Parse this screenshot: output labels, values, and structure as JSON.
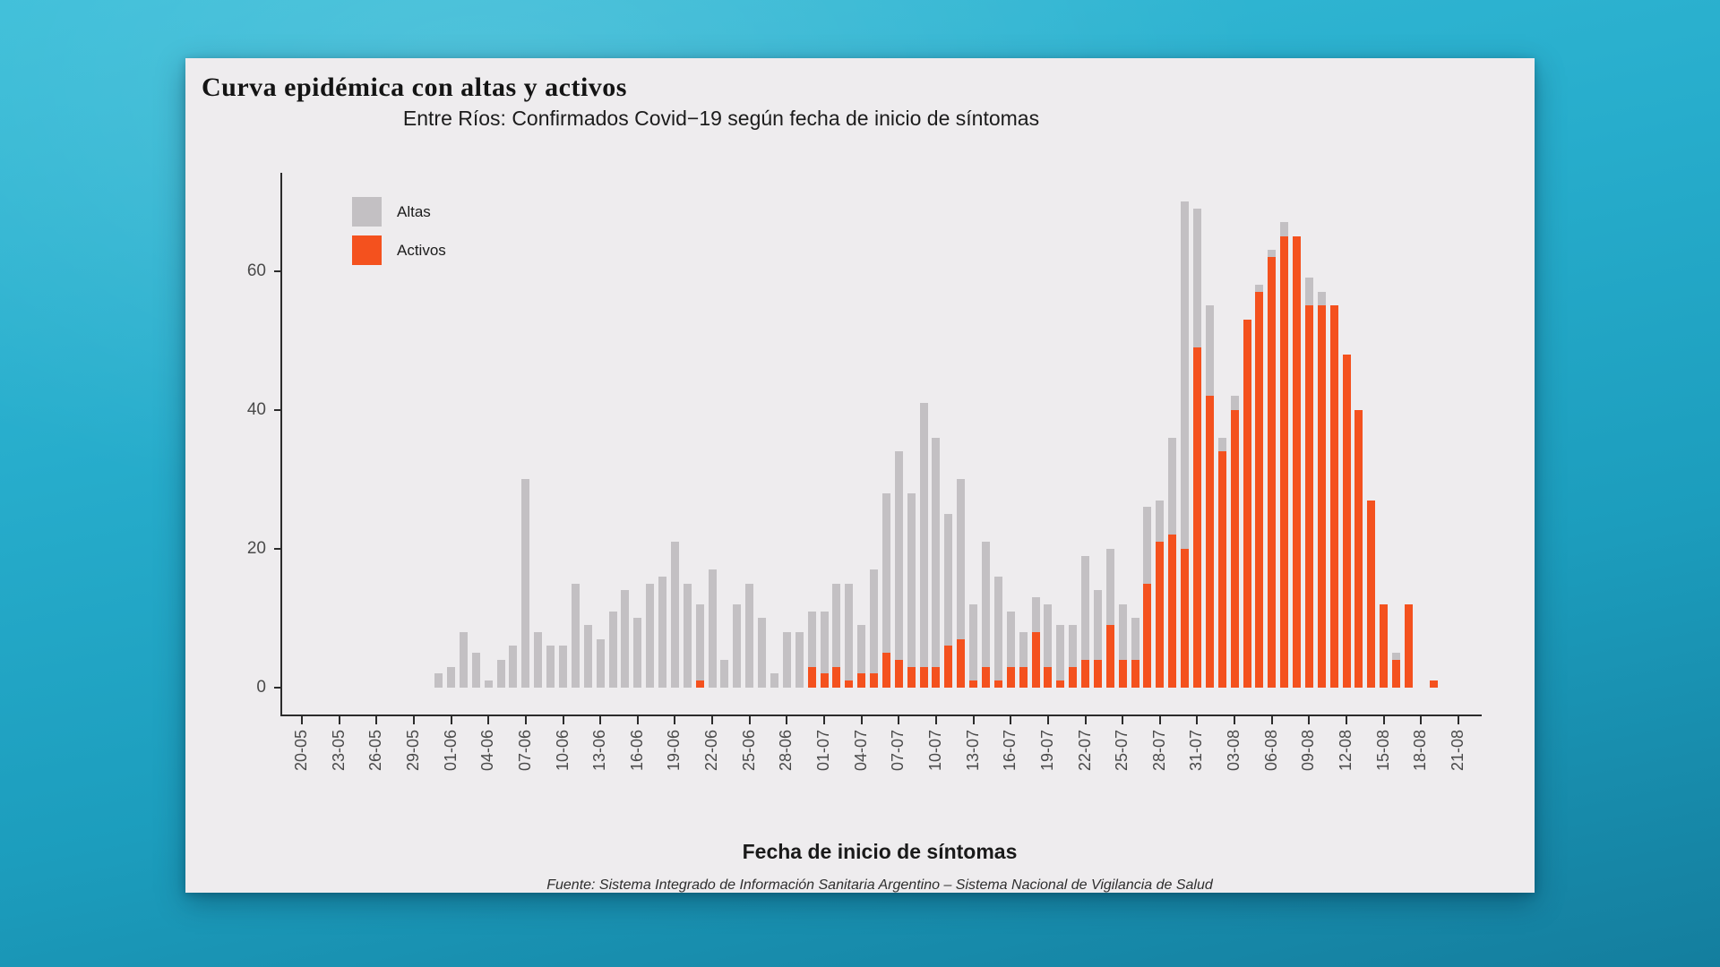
{
  "card": {
    "title": "Curva epidémica con altas y activos"
  },
  "legend": {
    "items": [
      {
        "label": "Altas",
        "color": "#c3c0c3"
      },
      {
        "label": "Activos",
        "color": "#f4511e"
      }
    ]
  },
  "footer": {
    "source": "Fuente: Sistema Integrado de Información Sanitaria Argentino – Sistema Nacional de Vigilancia de Salud"
  },
  "chart_data": {
    "type": "bar",
    "stacked": true,
    "title": "Entre Ríos: Confirmados Covid−19 según fecha de inicio de síntomas",
    "xlabel": "Fecha de inicio de síntomas",
    "ylabel": "",
    "ylim": [
      0,
      74
    ],
    "yticks": [
      0,
      20,
      40,
      60
    ],
    "grid": false,
    "legend_position": "top-left-inside",
    "x_axis_start_date": "20-05",
    "x_tick_labels": [
      "20-05",
      "23-05",
      "26-05",
      "29-05",
      "01-06",
      "04-06",
      "07-06",
      "10-06",
      "13-06",
      "16-06",
      "19-06",
      "22-06",
      "25-06",
      "28-06",
      "01-07",
      "04-07",
      "07-07",
      "10-07",
      "13-07",
      "16-07",
      "19-07",
      "22-07",
      "25-07",
      "28-07",
      "31-07",
      "03-08",
      "06-08",
      "09-08",
      "12-08",
      "15-08",
      "18-08",
      "21-08"
    ],
    "series_colors": {
      "Altas": "#c3c0c3",
      "Activos": "#f4511e"
    },
    "bars": [
      {
        "date": "23-05",
        "altas": 1,
        "activos": 0
      },
      {
        "date": "24-05",
        "altas": 2,
        "activos": 0
      },
      {
        "date": "25-05",
        "altas": 2,
        "activos": 0
      },
      {
        "date": "26-05",
        "altas": 2,
        "activos": 0
      },
      {
        "date": "27-05",
        "altas": 1,
        "activos": 0
      },
      {
        "date": "28-05",
        "altas": 1,
        "activos": 0
      },
      {
        "date": "29-05",
        "altas": 1,
        "activos": 0
      },
      {
        "date": "30-05",
        "altas": 4,
        "activos": 0
      },
      {
        "date": "31-05",
        "altas": 1,
        "activos": 0
      },
      {
        "date": "01-06",
        "altas": 2,
        "activos": 0
      },
      {
        "date": "02-06",
        "altas": 3,
        "activos": 0
      },
      {
        "date": "03-06",
        "altas": 8,
        "activos": 0
      },
      {
        "date": "04-06",
        "altas": 5,
        "activos": 0
      },
      {
        "date": "05-06",
        "altas": 1,
        "activos": 0
      },
      {
        "date": "06-06",
        "altas": 4,
        "activos": 0
      },
      {
        "date": "07-06",
        "altas": 6,
        "activos": 0
      },
      {
        "date": "08-06",
        "altas": 30,
        "activos": 0
      },
      {
        "date": "09-06",
        "altas": 8,
        "activos": 0
      },
      {
        "date": "10-06",
        "altas": 6,
        "activos": 0
      },
      {
        "date": "11-06",
        "altas": 6,
        "activos": 0
      },
      {
        "date": "12-06",
        "altas": 15,
        "activos": 0
      },
      {
        "date": "13-06",
        "altas": 9,
        "activos": 0
      },
      {
        "date": "14-06",
        "altas": 7,
        "activos": 0
      },
      {
        "date": "15-06",
        "altas": 11,
        "activos": 0
      },
      {
        "date": "16-06",
        "altas": 14,
        "activos": 0
      },
      {
        "date": "17-06",
        "altas": 10,
        "activos": 0
      },
      {
        "date": "18-06",
        "altas": 15,
        "activos": 0
      },
      {
        "date": "19-06",
        "altas": 16,
        "activos": 0
      },
      {
        "date": "20-06",
        "altas": 21,
        "activos": 0
      },
      {
        "date": "21-06",
        "altas": 15,
        "activos": 0
      },
      {
        "date": "22-06",
        "altas": 11,
        "activos": 1
      },
      {
        "date": "23-06",
        "altas": 17,
        "activos": 0
      },
      {
        "date": "24-06",
        "altas": 4,
        "activos": 0
      },
      {
        "date": "25-06",
        "altas": 12,
        "activos": 0
      },
      {
        "date": "26-06",
        "altas": 15,
        "activos": 0
      },
      {
        "date": "27-06",
        "altas": 10,
        "activos": 0
      },
      {
        "date": "28-06",
        "altas": 2,
        "activos": 0
      },
      {
        "date": "29-06",
        "altas": 8,
        "activos": 0
      },
      {
        "date": "30-06",
        "altas": 8,
        "activos": 0
      },
      {
        "date": "01-07",
        "altas": 8,
        "activos": 3
      },
      {
        "date": "02-07",
        "altas": 9,
        "activos": 2
      },
      {
        "date": "03-07",
        "altas": 12,
        "activos": 3
      },
      {
        "date": "04-07",
        "altas": 14,
        "activos": 1
      },
      {
        "date": "05-07",
        "altas": 7,
        "activos": 2
      },
      {
        "date": "06-07",
        "altas": 15,
        "activos": 2
      },
      {
        "date": "07-07",
        "altas": 23,
        "activos": 5
      },
      {
        "date": "08-07",
        "altas": 30,
        "activos": 4
      },
      {
        "date": "09-07",
        "altas": 25,
        "activos": 3
      },
      {
        "date": "10-07",
        "altas": 38,
        "activos": 3
      },
      {
        "date": "11-07",
        "altas": 33,
        "activos": 3
      },
      {
        "date": "12-07",
        "altas": 19,
        "activos": 6
      },
      {
        "date": "13-07",
        "altas": 23,
        "activos": 7
      },
      {
        "date": "14-07",
        "altas": 11,
        "activos": 1
      },
      {
        "date": "15-07",
        "altas": 18,
        "activos": 3
      },
      {
        "date": "16-07",
        "altas": 15,
        "activos": 1
      },
      {
        "date": "17-07",
        "altas": 8,
        "activos": 3
      },
      {
        "date": "18-07",
        "altas": 5,
        "activos": 3
      },
      {
        "date": "19-07",
        "altas": 5,
        "activos": 8
      },
      {
        "date": "20-07",
        "altas": 9,
        "activos": 3
      },
      {
        "date": "21-07",
        "altas": 8,
        "activos": 1
      },
      {
        "date": "22-07",
        "altas": 6,
        "activos": 3
      },
      {
        "date": "23-07",
        "altas": 15,
        "activos": 4
      },
      {
        "date": "24-07",
        "altas": 10,
        "activos": 4
      },
      {
        "date": "25-07",
        "altas": 11,
        "activos": 9
      },
      {
        "date": "26-07",
        "altas": 8,
        "activos": 4
      },
      {
        "date": "27-07",
        "altas": 6,
        "activos": 4
      },
      {
        "date": "28-07",
        "altas": 11,
        "activos": 15
      },
      {
        "date": "29-07",
        "altas": 6,
        "activos": 21
      },
      {
        "date": "30-07",
        "altas": 14,
        "activos": 22
      },
      {
        "date": "31-07",
        "altas": 34,
        "activos": 36
      },
      {
        "date": "01-08",
        "altas": 16,
        "activos": 20
      },
      {
        "date": "02-08",
        "altas": 20,
        "activos": 49
      },
      {
        "date": "03-08",
        "altas": 13,
        "activos": 42
      },
      {
        "date": "04-08",
        "altas": 2,
        "activos": 34
      },
      {
        "date": "05-08",
        "altas": 2,
        "activos": 40
      },
      {
        "date": "06-08",
        "altas": 0,
        "activos": 53
      },
      {
        "date": "07-08",
        "altas": 1,
        "activos": 57
      },
      {
        "date": "08-08",
        "altas": 1,
        "activos": 62
      },
      {
        "date": "09-08",
        "altas": 2,
        "activos": 65
      },
      {
        "date": "10-08",
        "altas": 0,
        "activos": 65
      },
      {
        "date": "11-08",
        "altas": 4,
        "activos": 55
      },
      {
        "date": "12-08",
        "altas": 2,
        "activos": 55
      },
      {
        "date": "13-08",
        "altas": 0,
        "activos": 55
      },
      {
        "date": "14-08",
        "altas": 0,
        "activos": 48
      },
      {
        "date": "15-08",
        "altas": 0,
        "activos": 40
      },
      {
        "date": "16-08",
        "altas": 0,
        "activos": 27
      },
      {
        "date": "17-08",
        "altas": 0,
        "activos": 12
      },
      {
        "date": "18-08",
        "altas": 1,
        "activos": 4
      },
      {
        "date": "19-08",
        "altas": 0,
        "activos": 12
      },
      {
        "date": "21-08",
        "altas": 0,
        "activos": 1
      }
    ]
  }
}
